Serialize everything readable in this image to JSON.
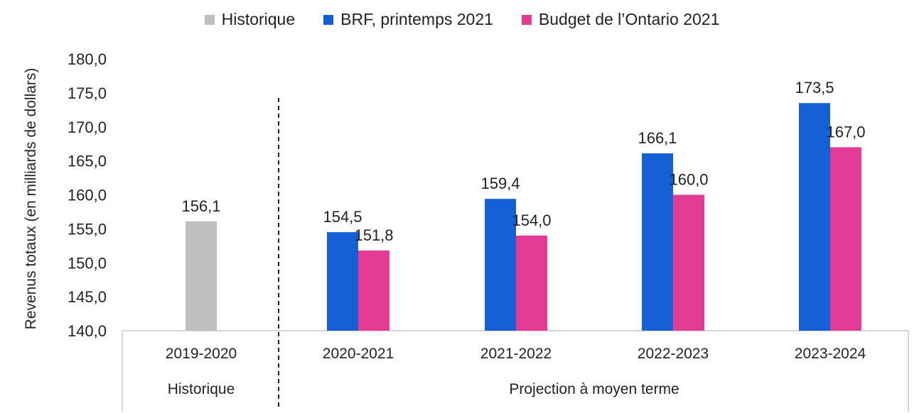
{
  "chart_data": {
    "type": "bar",
    "ylabel": "Revenus totaux (en milliards de dollars)",
    "ylim": [
      140,
      180
    ],
    "yticks": [
      "140,0",
      "145,0",
      "150,0",
      "155,0",
      "160,0",
      "165,0",
      "170,0",
      "175,0",
      "180,0"
    ],
    "categories": [
      "2019-2020",
      "2020-2021",
      "2021-2022",
      "2022-2023",
      "2023-2024"
    ],
    "groups": [
      {
        "label": "Historique",
        "categories": [
          "2019-2020"
        ]
      },
      {
        "label": "Projection à moyen terme",
        "categories": [
          "2020-2021",
          "2021-2022",
          "2022-2023",
          "2023-2024"
        ]
      }
    ],
    "series": [
      {
        "name": "Historique",
        "color": "#bfbfbf",
        "values": [
          156.1,
          null,
          null,
          null,
          null
        ],
        "labels": [
          "156,1",
          "",
          "",
          "",
          ""
        ]
      },
      {
        "name": "BRF, printemps 2021",
        "color": "#1560d6",
        "values": [
          null,
          154.5,
          159.4,
          166.1,
          173.5
        ],
        "labels": [
          "",
          "154,5",
          "159,4",
          "166,1",
          "173,5"
        ]
      },
      {
        "name": "Budget de l’Ontario 2021",
        "color": "#e23c96",
        "values": [
          null,
          151.8,
          154.0,
          160.0,
          167.0
        ],
        "labels": [
          "",
          "151,8",
          "154,0",
          "160,0",
          "167,0"
        ]
      }
    ],
    "legend": "top-center",
    "grid": false
  }
}
